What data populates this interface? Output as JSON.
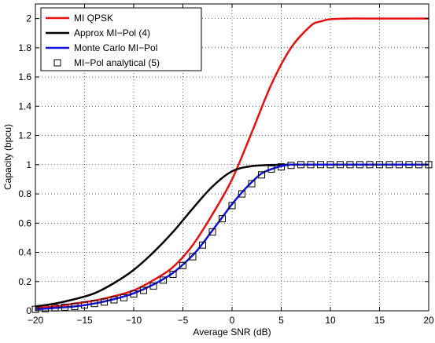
{
  "chart_data": {
    "type": "line",
    "title": "",
    "xlabel": "Average SNR (dB)",
    "ylabel": "Capacity (bpcu)",
    "xlim": [
      -20,
      20
    ],
    "ylim": [
      0,
      2.1
    ],
    "xticks": [
      -20,
      -15,
      -10,
      -5,
      0,
      5,
      10,
      15,
      20
    ],
    "yticks": [
      0,
      0.2,
      0.4,
      0.6,
      0.8,
      1,
      1.2,
      1.4,
      1.6,
      1.8,
      2
    ],
    "grid": true,
    "legend_position": "top-left",
    "series": [
      {
        "name": "MI QPSK",
        "style": "line",
        "color": "#e8100e",
        "x": [
          -20,
          -18,
          -16,
          -14,
          -12,
          -10,
          -8,
          -6,
          -4,
          -2,
          0,
          2,
          4,
          6,
          8,
          9,
          10,
          12,
          14,
          16,
          18,
          20
        ],
        "y": [
          0.02,
          0.03,
          0.05,
          0.07,
          0.1,
          0.14,
          0.21,
          0.3,
          0.45,
          0.66,
          0.9,
          1.22,
          1.55,
          1.8,
          1.95,
          1.98,
          1.995,
          2.0,
          2.0,
          2.0,
          2.0,
          2.0
        ]
      },
      {
        "name": "Approx MI−Pol (4)",
        "style": "line",
        "color": "#000000",
        "x": [
          -20,
          -18,
          -16,
          -14,
          -12,
          -10,
          -8,
          -6,
          -4,
          -2,
          0,
          2,
          4,
          6,
          8,
          10,
          12,
          14,
          16,
          18,
          20
        ],
        "y": [
          0.03,
          0.05,
          0.08,
          0.12,
          0.19,
          0.28,
          0.4,
          0.54,
          0.7,
          0.85,
          0.955,
          0.99,
          0.998,
          1.0,
          1.0,
          1.0,
          1.0,
          1.0,
          1.0,
          1.0,
          1.0
        ]
      },
      {
        "name": "Monte Carlo MI−Pol",
        "style": "line",
        "color": "#1010e0",
        "x": [
          -20,
          -18,
          -16,
          -14,
          -12,
          -10,
          -8,
          -6,
          -4,
          -3,
          -2,
          -1,
          0,
          1,
          2,
          3,
          4,
          5,
          6,
          8,
          10,
          12,
          14,
          16,
          18,
          20
        ],
        "y": [
          0.01,
          0.02,
          0.03,
          0.05,
          0.08,
          0.12,
          0.18,
          0.26,
          0.38,
          0.46,
          0.55,
          0.64,
          0.73,
          0.81,
          0.88,
          0.94,
          0.97,
          0.99,
          1.0,
          1.0,
          1.0,
          1.0,
          1.0,
          1.0,
          1.0,
          1.0
        ]
      },
      {
        "name": "MI−Pol analytical (5)",
        "style": "markers",
        "marker": "square",
        "color": "#000000",
        "x": [
          -20,
          -19,
          -18,
          -17,
          -16,
          -15,
          -14,
          -13,
          -12,
          -11,
          -10,
          -9,
          -8,
          -7,
          -6,
          -5,
          -4,
          -3,
          -2,
          -1,
          0,
          1,
          2,
          3,
          4,
          5,
          6,
          7,
          8,
          9,
          10,
          11,
          12,
          13,
          14,
          15,
          16,
          17,
          18,
          19,
          20
        ],
        "y": [
          0.01,
          0.015,
          0.02,
          0.025,
          0.03,
          0.04,
          0.05,
          0.06,
          0.075,
          0.09,
          0.115,
          0.14,
          0.17,
          0.21,
          0.25,
          0.31,
          0.37,
          0.45,
          0.54,
          0.63,
          0.72,
          0.8,
          0.87,
          0.93,
          0.97,
          0.985,
          0.995,
          1.0,
          1.0,
          1.0,
          1.0,
          1.0,
          1.0,
          1.0,
          1.0,
          1.0,
          1.0,
          1.0,
          1.0,
          1.0,
          1.0
        ]
      }
    ]
  }
}
